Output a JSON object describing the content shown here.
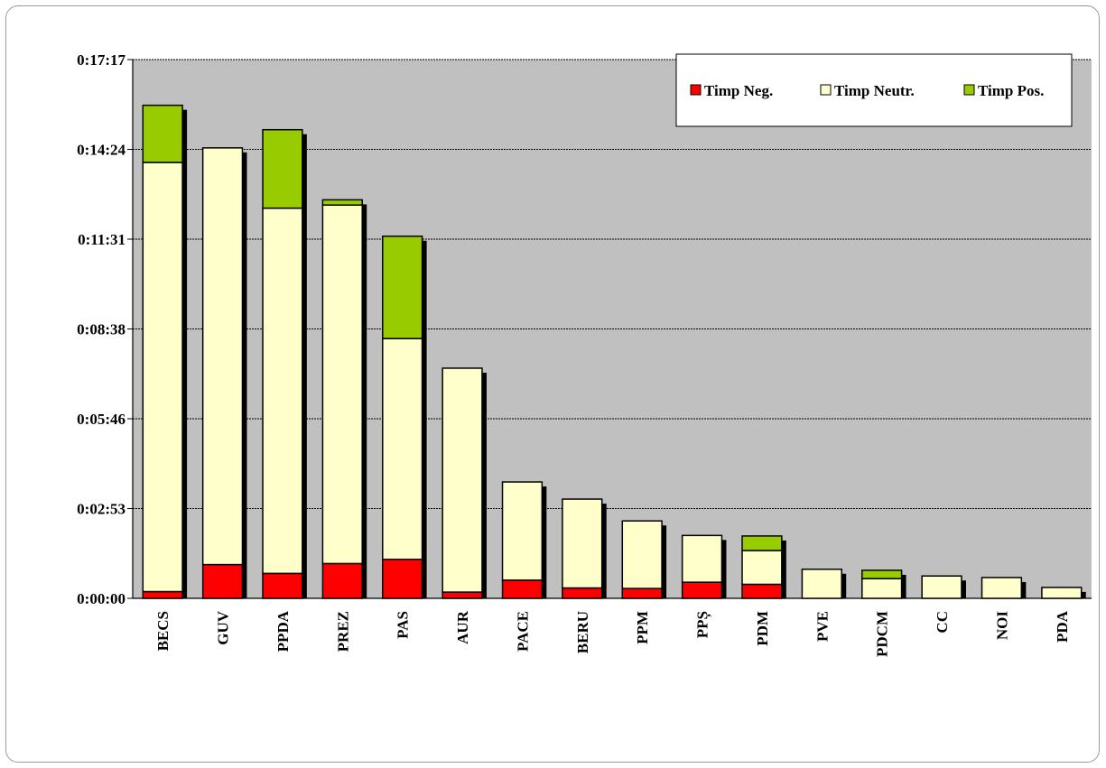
{
  "chart_data": {
    "type": "bar",
    "stacked": true,
    "categories": [
      "BECS",
      "GUV",
      "PPDA",
      "PREZ",
      "PAS",
      "AUR",
      "PACE",
      "BERU",
      "PPM",
      "PPȘ",
      "PDM",
      "PVE",
      "PDCM",
      "CC",
      "NOI",
      "PDA"
    ],
    "series": [
      {
        "name": "Timp Neg.",
        "color": "#ff0000",
        "values_seconds": [
          13,
          65,
          48,
          67,
          75,
          12,
          35,
          20,
          19,
          31,
          27,
          0,
          0,
          0,
          0,
          0
        ]
      },
      {
        "name": "Timp Neutr.",
        "color": "#ffffcc",
        "values_seconds": [
          826,
          802,
          703,
          690,
          425,
          431,
          189,
          171,
          130,
          90,
          65,
          56,
          38,
          43,
          40,
          21
        ]
      },
      {
        "name": "Timp Pos.",
        "color": "#99cc00",
        "values_seconds": [
          110,
          0,
          151,
          10,
          197,
          0,
          0,
          0,
          0,
          0,
          28,
          0,
          16,
          0,
          0,
          0
        ]
      }
    ],
    "y_ticks": [
      "0:00:00",
      "0:02:53",
      "0:05:46",
      "0:08:38",
      "0:11:31",
      "0:14:24",
      "0:17:17"
    ],
    "ylim_seconds": [
      0,
      1037
    ],
    "title": "",
    "xlabel": "",
    "ylabel": "",
    "legend_position": "top-right",
    "grid": true,
    "plot_background": "#c0c0c0"
  }
}
